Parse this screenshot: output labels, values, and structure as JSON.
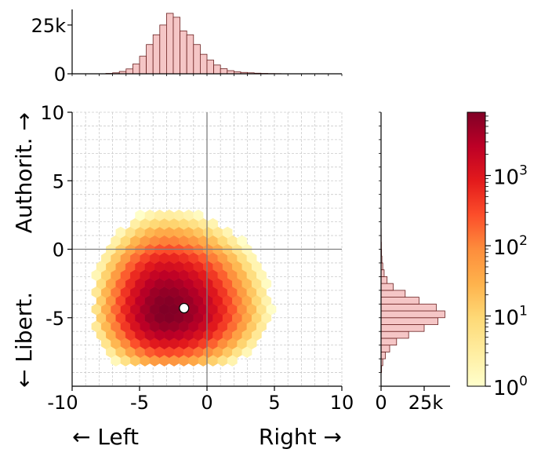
{
  "chart_data": [
    {
      "type": "heatmap",
      "subtype": "hexbin",
      "xlabel_left": "← Left",
      "xlabel_right": "Right →",
      "ylabel_bottom": "← Libert.",
      "ylabel_top": "Authorit. →",
      "xlim": [
        -10,
        10
      ],
      "ylim": [
        -10,
        10
      ],
      "x_ticks": [
        -10,
        -5,
        0,
        5,
        10
      ],
      "x_tick_labels": [
        "-10",
        "-5",
        "0",
        "5",
        "10"
      ],
      "y_ticks": [
        -5,
        0,
        5,
        10
      ],
      "y_tick_labels": [
        "-5",
        "0",
        "5",
        "10"
      ],
      "grid": true,
      "density_center": [
        -3.0,
        -4.6
      ],
      "density_spread_x": 1.9,
      "density_spread_y": 1.6,
      "density_peak_log10": 3.9,
      "extent_x": [
        -8.2,
        6.0
      ],
      "extent_y": [
        -8.7,
        5.0
      ],
      "reference_lines": [
        {
          "axis": "x",
          "value": 0
        },
        {
          "axis": "y",
          "value": 0
        }
      ],
      "mean_marker": {
        "x": -1.7,
        "y": -4.3
      }
    },
    {
      "type": "bar",
      "role": "marginal-x",
      "orientation": "vertical",
      "bin_edges": [
        -7.5,
        -7,
        -6.5,
        -6,
        -5.5,
        -5,
        -4.5,
        -4,
        -3.5,
        -3,
        -2.5,
        -2,
        -1.5,
        -1,
        -0.5,
        0,
        0.5,
        1,
        1.5,
        2,
        2.5,
        3,
        3.5,
        4,
        4.5,
        5,
        5.5,
        6,
        6.5
      ],
      "values": [
        200,
        500,
        1200,
        2500,
        5000,
        9000,
        15000,
        20000,
        25000,
        31000,
        29000,
        22000,
        20000,
        15000,
        10000,
        7000,
        4500,
        2600,
        1600,
        1000,
        700,
        500,
        300,
        200,
        120,
        80,
        40,
        20
      ],
      "ylim": [
        0,
        33000
      ],
      "y_ticks": [
        0,
        25000
      ],
      "y_tick_labels": [
        "0",
        "25k"
      ],
      "xlim": [
        -10,
        10
      ]
    },
    {
      "type": "bar",
      "role": "marginal-y",
      "orientation": "horizontal",
      "bin_edges": [
        -9,
        -8.5,
        -8,
        -7.5,
        -7,
        -6.5,
        -6,
        -5.5,
        -5,
        -4.5,
        -4,
        -3.5,
        -3,
        -2.5,
        -2,
        -1.5,
        -1,
        -0.5,
        0,
        0.5,
        1,
        1.5,
        2,
        2.5,
        3,
        3.5,
        4,
        4.5,
        5
      ],
      "values": [
        300,
        1000,
        2500,
        5000,
        9000,
        16000,
        25000,
        33000,
        37000,
        32000,
        22000,
        14000,
        7000,
        3500,
        1800,
        1000,
        500,
        300,
        200,
        120,
        80,
        50,
        30,
        20,
        10,
        6,
        4,
        2
      ],
      "xlim": [
        0,
        40000
      ],
      "x_ticks": [
        0,
        25000
      ],
      "x_tick_labels": [
        "0",
        "25k"
      ],
      "ylim": [
        -10,
        10
      ]
    },
    {
      "type": "colorbar",
      "scale": "log",
      "range_log10": [
        0,
        3.9
      ],
      "ticks_log10": [
        0,
        1,
        2,
        3
      ],
      "tick_labels": [
        "10",
        "10",
        "10",
        "10"
      ],
      "tick_exponents": [
        "0",
        "1",
        "2",
        "3"
      ],
      "colormap": [
        "#ffffcc",
        "#ffeda0",
        "#fed976",
        "#feb24c",
        "#fd8d3c",
        "#fc4e2a",
        "#e31a1c",
        "#bd0026",
        "#800026"
      ]
    }
  ],
  "colors": {
    "hist_fill": "#f5c6c6",
    "hist_edge": "#6b2020",
    "grid": "#cccccc",
    "refline": "#808080",
    "marker_fill": "#ffffff",
    "marker_edge": "#000000"
  }
}
